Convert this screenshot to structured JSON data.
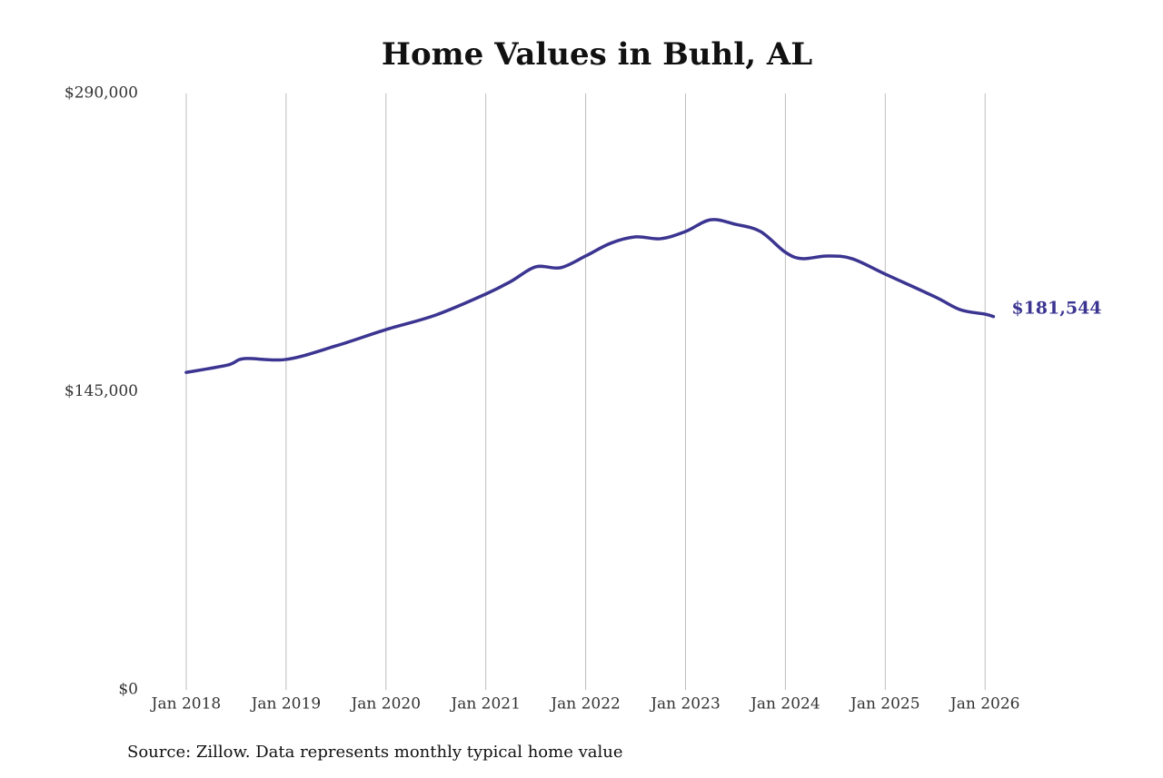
{
  "chart_data": {
    "type": "line",
    "title": "Home Values in Buhl, AL",
    "source": "Source: Zillow. Data represents monthly typical home value",
    "x": [
      "2018-01",
      "2018-06",
      "2018-08",
      "2019-01",
      "2019-07",
      "2020-01",
      "2020-07",
      "2021-01",
      "2021-04",
      "2021-07",
      "2021-10",
      "2022-01",
      "2022-04",
      "2022-07",
      "2022-10",
      "2023-01",
      "2023-04",
      "2023-07",
      "2023-10",
      "2024-01",
      "2024-03",
      "2024-06",
      "2024-09",
      "2025-01",
      "2025-07",
      "2025-10",
      "2026-01",
      "2026-02"
    ],
    "values": [
      154400,
      158000,
      161100,
      160700,
      167300,
      175200,
      182300,
      192500,
      198600,
      205700,
      205300,
      211000,
      217200,
      220300,
      219400,
      222900,
      228600,
      226400,
      222900,
      212800,
      209700,
      211000,
      209700,
      202200,
      191100,
      184900,
      182700,
      181544
    ],
    "value_labels": [
      null,
      null,
      null,
      null,
      null,
      null,
      null,
      null,
      null,
      null,
      null,
      null,
      null,
      null,
      null,
      null,
      null,
      null,
      null,
      null,
      null,
      null,
      null,
      null,
      null,
      null,
      null,
      "$181,544"
    ],
    "color": "#3b3591",
    "xlim": [
      "2017-07",
      "2026-06"
    ],
    "xticks": [
      {
        "value": "2018-01",
        "label": "Jan 2018"
      },
      {
        "value": "2019-01",
        "label": "Jan 2019"
      },
      {
        "value": "2020-01",
        "label": "Jan 2020"
      },
      {
        "value": "2021-01",
        "label": "Jan 2021"
      },
      {
        "value": "2022-01",
        "label": "Jan 2022"
      },
      {
        "value": "2023-01",
        "label": "Jan 2023"
      },
      {
        "value": "2024-01",
        "label": "Jan 2024"
      },
      {
        "value": "2025-01",
        "label": "Jan 2025"
      },
      {
        "value": "2026-01",
        "label": "Jan 2026"
      }
    ],
    "ylim": [
      0,
      290000
    ],
    "yticks": [
      {
        "value": 0,
        "label": "$0"
      },
      {
        "value": 145000,
        "label": "$145,000"
      },
      {
        "value": 290000,
        "label": "$290,000"
      }
    ],
    "grid": "x"
  }
}
